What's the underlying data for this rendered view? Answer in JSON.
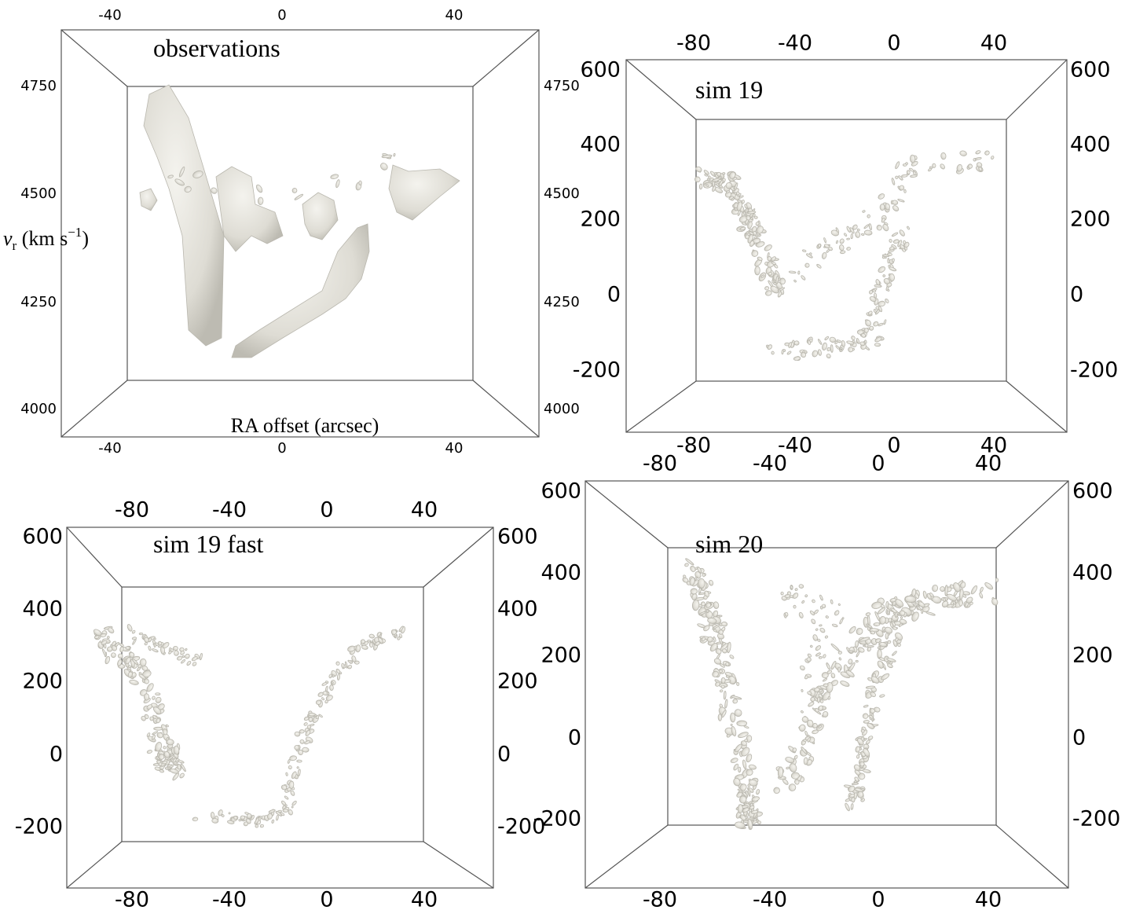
{
  "panels": [
    {
      "title": "observations",
      "y_label": [
        "v",
        "r",
        " (km s",
        "−1",
        ")"
      ],
      "x_label": "RA offset (arcsec)",
      "ticks": {
        "top": [
          -40,
          0,
          40
        ],
        "bottom": [
          -40,
          0,
          40
        ],
        "left": [
          4750,
          4500,
          4250,
          4000
        ],
        "right": [
          4750,
          4500,
          4250,
          4000
        ]
      }
    },
    {
      "title": "sim 19",
      "ticks": {
        "top": [
          -80,
          -40,
          0,
          40
        ],
        "bottom": [
          -80,
          -40,
          0,
          40
        ],
        "left": [
          600,
          400,
          200,
          0,
          -200
        ],
        "right": [
          600,
          400,
          200,
          0,
          -200
        ]
      }
    },
    {
      "title": "sim 19 fast",
      "ticks": {
        "top": [
          -80,
          -40,
          0,
          40
        ],
        "bottom": [
          -80,
          -40,
          0,
          40
        ],
        "left": [
          600,
          400,
          200,
          0,
          -200
        ],
        "right": [
          600,
          400,
          200,
          0,
          -200
        ]
      }
    },
    {
      "title": "sim 20",
      "ticks": {
        "top": [
          -80,
          -40,
          0,
          40
        ],
        "bottom": [
          -80,
          -40,
          0,
          40
        ],
        "left": [
          600,
          400,
          200,
          0,
          -200
        ],
        "right": [
          600,
          400,
          200,
          0,
          -200
        ]
      }
    }
  ]
}
